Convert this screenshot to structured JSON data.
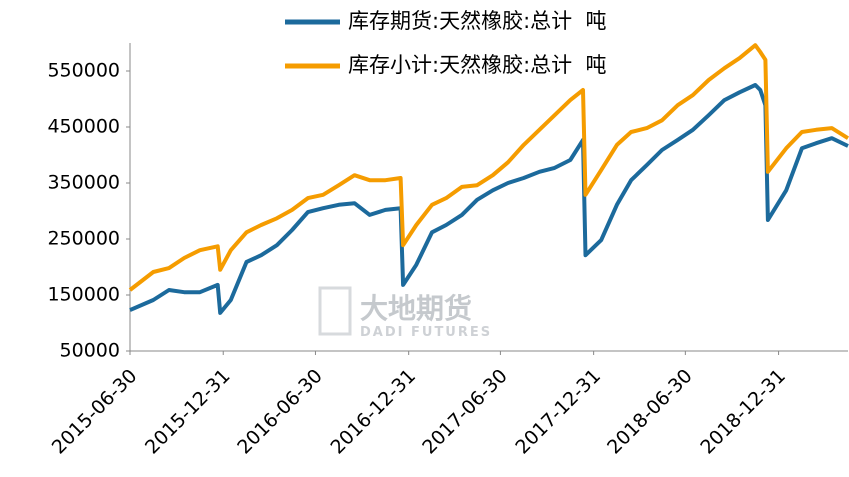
{
  "chart_data": {
    "type": "line",
    "watermark": "大地期货",
    "watermark_sub": "DADI FUTURES",
    "x": [
      "2015-06-30",
      "2015-08-15",
      "2015-09-15",
      "2015-10-15",
      "2015-11-15",
      "2015-12-20",
      "2015-12-25",
      "2016-01-15",
      "2016-02-15",
      "2016-03-15",
      "2016-04-15",
      "2016-05-15",
      "2016-06-15",
      "2016-07-15",
      "2016-08-15",
      "2016-09-15",
      "2016-10-15",
      "2016-11-15",
      "2016-12-15",
      "2016-12-20",
      "2017-01-15",
      "2017-02-15",
      "2017-03-15",
      "2017-04-15",
      "2017-05-15",
      "2017-06-15",
      "2017-07-15",
      "2017-08-15",
      "2017-09-15",
      "2017-10-15",
      "2017-11-15",
      "2017-12-10",
      "2017-12-15",
      "2018-01-15",
      "2018-02-15",
      "2018-03-15",
      "2018-04-15",
      "2018-05-15",
      "2018-06-15",
      "2018-07-15",
      "2018-08-15",
      "2018-09-15",
      "2018-10-15",
      "2018-11-15",
      "2018-11-25",
      "2018-12-05",
      "2018-12-10",
      "2019-01-15",
      "2019-02-15",
      "2019-03-15",
      "2019-04-15",
      "2019-05-17"
    ],
    "series": [
      {
        "name": "库存期货:天然橡胶:总计  吨",
        "color": "#1c6a9c",
        "values": [
          123000,
          141000,
          159000,
          155000,
          155000,
          168000,
          118000,
          141000,
          209000,
          221000,
          239000,
          266000,
          298000,
          305000,
          311000,
          314000,
          293000,
          302000,
          305000,
          168000,
          204000,
          262000,
          275000,
          293000,
          320000,
          337000,
          350000,
          359000,
          370000,
          377000,
          391000,
          427000,
          221000,
          248000,
          311000,
          355000,
          382000,
          409000,
          427000,
          445000,
          471000,
          498000,
          512000,
          525000,
          516000,
          489000,
          284000,
          337000,
          412000,
          421000,
          430000,
          416000
        ]
      },
      {
        "name": "库存小计:天然橡胶:总计  吨",
        "color": "#f59c00",
        "values": [
          159000,
          191000,
          198000,
          216000,
          230000,
          237000,
          195000,
          230000,
          262000,
          275000,
          287000,
          302000,
          323000,
          329000,
          346000,
          364000,
          355000,
          355000,
          359000,
          239000,
          275000,
          311000,
          323000,
          343000,
          346000,
          364000,
          387000,
          418000,
          445000,
          471000,
          498000,
          516000,
          329000,
          373000,
          418000,
          441000,
          448000,
          462000,
          489000,
          507000,
          534000,
          555000,
          573000,
          596000,
          584000,
          570000,
          370000,
          412000,
          441000,
          445000,
          448000,
          430000
        ]
      }
    ],
    "xlim": [
      "2015-06-30",
      "2019-05-17"
    ],
    "xticks": [
      "2015-06-30",
      "2015-12-31",
      "2016-06-30",
      "2016-12-31",
      "2017-06-30",
      "2017-12-31",
      "2018-06-30",
      "2018-12-31"
    ],
    "ylim": [
      50000,
      600000
    ],
    "yticks": [
      50000,
      150000,
      250000,
      350000,
      450000,
      550000
    ],
    "grid": false
  }
}
